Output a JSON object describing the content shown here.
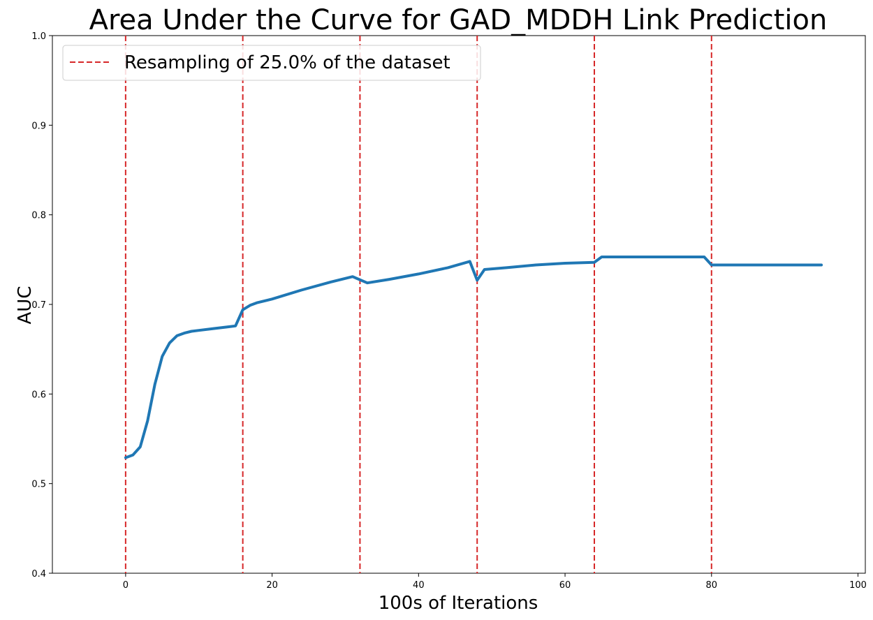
{
  "chart_data": {
    "type": "line",
    "title": "Area Under the Curve for GAD_MDDH Link Prediction",
    "xlabel": "100s of Iterations",
    "ylabel": "AUC",
    "xlim": [
      -10,
      101
    ],
    "ylim": [
      0.4,
      1.0
    ],
    "xticks": [
      0,
      20,
      40,
      60,
      80,
      100
    ],
    "yticks": [
      0.4,
      0.5,
      0.6,
      0.7,
      0.8,
      0.9,
      1.0
    ],
    "grid": false,
    "legend_position": "top-left",
    "series": [
      {
        "color": "#1f77b4",
        "x": [
          0,
          1,
          2,
          3,
          4,
          5,
          6,
          7,
          8,
          9,
          10,
          12,
          14,
          15,
          16,
          17,
          18,
          20,
          24,
          28,
          31,
          33,
          36,
          40,
          44,
          47,
          48,
          49,
          52,
          56,
          60,
          64,
          65,
          70,
          75,
          79,
          80,
          85,
          90,
          95
        ],
        "y": [
          0.529,
          0.532,
          0.541,
          0.57,
          0.611,
          0.642,
          0.657,
          0.665,
          0.668,
          0.67,
          0.671,
          0.673,
          0.675,
          0.676,
          0.694,
          0.699,
          0.702,
          0.706,
          0.716,
          0.725,
          0.731,
          0.724,
          0.728,
          0.734,
          0.741,
          0.748,
          0.727,
          0.739,
          0.741,
          0.744,
          0.746,
          0.747,
          0.753,
          0.753,
          0.753,
          0.753,
          0.744,
          0.744,
          0.744,
          0.744
        ]
      }
    ],
    "vlines": {
      "label": "Resampling of 25.0% of the dataset",
      "color": "#d62728",
      "x": [
        0,
        16,
        32,
        48,
        64,
        80
      ]
    }
  }
}
